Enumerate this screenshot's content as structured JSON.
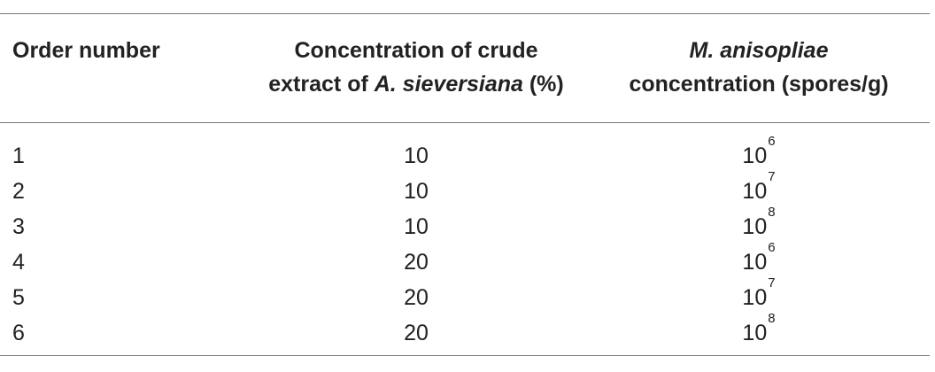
{
  "table": {
    "header": {
      "col1": "Order number",
      "col2_line1": "Concentration of crude",
      "col2_line2_pre": "extract of ",
      "col2_line2_italic": "A. sieversiana",
      "col2_line2_post": " (%)",
      "col3_line1_italic": "M. anisopliae",
      "col3_line2": "concentration (spores/g)"
    },
    "rows": [
      {
        "order": "1",
        "extract_concentration": "10",
        "spore_base": "10",
        "spore_exponent": "6"
      },
      {
        "order": "2",
        "extract_concentration": "10",
        "spore_base": "10",
        "spore_exponent": "7"
      },
      {
        "order": "3",
        "extract_concentration": "10",
        "spore_base": "10",
        "spore_exponent": "8"
      },
      {
        "order": "4",
        "extract_concentration": "20",
        "spore_base": "10",
        "spore_exponent": "6"
      },
      {
        "order": "5",
        "extract_concentration": "20",
        "spore_base": "10",
        "spore_exponent": "7"
      },
      {
        "order": "6",
        "extract_concentration": "20",
        "spore_base": "10",
        "spore_exponent": "8"
      }
    ]
  }
}
